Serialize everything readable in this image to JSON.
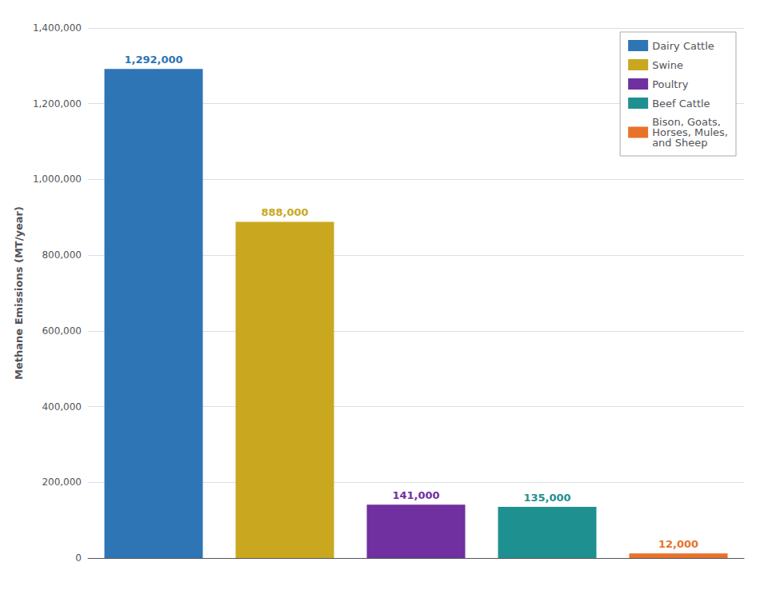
{
  "chart_data": {
    "type": "bar",
    "categories": [
      null,
      null,
      null,
      null,
      null
    ],
    "series": [
      {
        "name": "Dairy Cattle",
        "color": "#2e75b6",
        "values": [
          1292000,
          null,
          null,
          null,
          null
        ],
        "value_labels": [
          "1,292,000",
          null,
          null,
          null,
          null
        ]
      },
      {
        "name": "Swine",
        "color": "#c9a820",
        "values": [
          null,
          888000,
          null,
          null,
          null
        ],
        "value_labels": [
          null,
          "888,000",
          null,
          null,
          null
        ]
      },
      {
        "name": "Poultry",
        "color": "#7030a0",
        "values": [
          null,
          null,
          141000,
          null,
          null
        ],
        "value_labels": [
          null,
          null,
          "141,000",
          null,
          null
        ]
      },
      {
        "name": "Beef Cattle",
        "color": "#1f9090",
        "values": [
          null,
          null,
          null,
          135000,
          null
        ],
        "value_labels": [
          null,
          null,
          null,
          "135,000",
          null
        ]
      },
      {
        "name": "Bison, Goats,\nHorses, Mules,\nand Sheep",
        "color": "#e8722a",
        "values": [
          null,
          null,
          null,
          null,
          12000
        ],
        "value_labels": [
          null,
          null,
          null,
          null,
          "12,000"
        ]
      }
    ],
    "ylabel": "Methane Emissions (MT/year)",
    "ylim": [
      0,
      1400000
    ],
    "yticks": [
      0,
      {
        "value": 200000,
        "label": "200,000"
      },
      {
        "value": 400000,
        "label": "400,000"
      },
      {
        "value": 600000,
        "label": "600,000"
      },
      {
        "value": 800000,
        "label": "800,000"
      },
      {
        "value": 1000000,
        "label": "1,000,000"
      },
      {
        "value": 1200000,
        "label": "1,200,000"
      },
      {
        "value": 1400000,
        "label": "1,400,000"
      }
    ],
    "grid": true,
    "legend": "upper right",
    "data_labels": true,
    "tick_labels": "y"
  }
}
